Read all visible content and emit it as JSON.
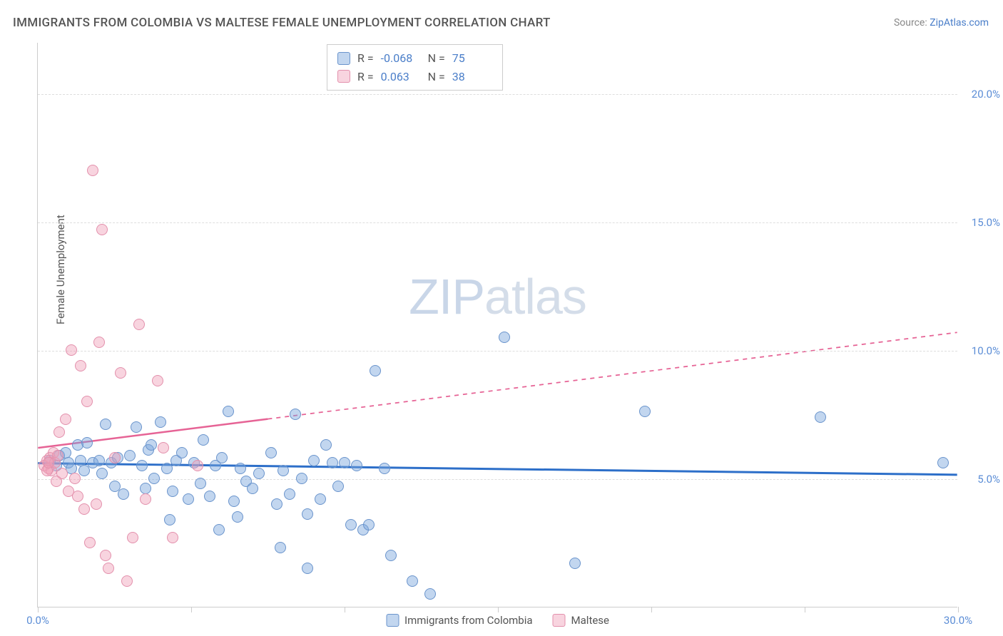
{
  "title": "IMMIGRANTS FROM COLOMBIA VS MALTESE FEMALE UNEMPLOYMENT CORRELATION CHART",
  "source_label": "Source:",
  "source_name": "ZipAtlas.com",
  "y_axis_label": "Female Unemployment",
  "watermark_a": "ZIP",
  "watermark_b": "atlas",
  "chart": {
    "type": "scatter",
    "xlim": [
      0,
      30
    ],
    "ylim": [
      0,
      22
    ],
    "x_ticks": [
      0,
      5,
      10,
      15,
      20,
      25,
      30
    ],
    "x_tick_labels": {
      "0": "0.0%",
      "30": "30.0%"
    },
    "y_gridlines": [
      5,
      10,
      15,
      20
    ],
    "y_tick_labels": {
      "5": "5.0%",
      "10": "10.0%",
      "15": "15.0%",
      "20": "20.0%"
    },
    "background_color": "#ffffff",
    "grid_color": "#dddddd",
    "axis_color": "#cccccc",
    "tick_label_color": "#5b8dd6",
    "point_radius": 8,
    "series": [
      {
        "name": "Immigrants from Colombia",
        "fill": "rgba(120,165,220,0.45)",
        "stroke": "#6a94cc",
        "trend_color": "#2d6fc9",
        "trend_width": 3,
        "trend_dash_after_x": 30,
        "r": "-0.068",
        "n": "75",
        "trend": {
          "y_at_x0": 5.6,
          "y_at_x30": 5.15
        },
        "points": [
          [
            0.4,
            5.7
          ],
          [
            0.6,
            5.5
          ],
          [
            0.7,
            5.9
          ],
          [
            0.9,
            6.0
          ],
          [
            1.0,
            5.6
          ],
          [
            1.1,
            5.4
          ],
          [
            1.3,
            6.3
          ],
          [
            1.4,
            5.7
          ],
          [
            1.5,
            5.3
          ],
          [
            1.6,
            6.4
          ],
          [
            1.8,
            5.6
          ],
          [
            2.0,
            5.7
          ],
          [
            2.1,
            5.2
          ],
          [
            2.2,
            7.1
          ],
          [
            2.4,
            5.6
          ],
          [
            2.5,
            4.7
          ],
          [
            2.6,
            5.8
          ],
          [
            2.8,
            4.4
          ],
          [
            3.0,
            5.9
          ],
          [
            3.2,
            7.0
          ],
          [
            3.4,
            5.5
          ],
          [
            3.5,
            4.6
          ],
          [
            3.6,
            6.1
          ],
          [
            3.8,
            5.0
          ],
          [
            4.0,
            7.2
          ],
          [
            4.2,
            5.4
          ],
          [
            4.4,
            4.5
          ],
          [
            4.5,
            5.7
          ],
          [
            4.7,
            6.0
          ],
          [
            4.9,
            4.2
          ],
          [
            5.1,
            5.6
          ],
          [
            5.3,
            4.8
          ],
          [
            5.4,
            6.5
          ],
          [
            5.6,
            4.3
          ],
          [
            5.8,
            5.5
          ],
          [
            6.0,
            5.8
          ],
          [
            6.2,
            7.6
          ],
          [
            6.4,
            4.1
          ],
          [
            6.6,
            5.4
          ],
          [
            6.8,
            4.9
          ],
          [
            7.0,
            4.6
          ],
          [
            7.2,
            5.2
          ],
          [
            7.6,
            6.0
          ],
          [
            7.8,
            4.0
          ],
          [
            8.0,
            5.3
          ],
          [
            8.2,
            4.4
          ],
          [
            8.4,
            7.5
          ],
          [
            8.6,
            5.0
          ],
          [
            8.8,
            3.6
          ],
          [
            9.0,
            5.7
          ],
          [
            9.2,
            4.2
          ],
          [
            9.4,
            6.3
          ],
          [
            9.6,
            5.6
          ],
          [
            9.8,
            4.7
          ],
          [
            10.0,
            5.6
          ],
          [
            10.2,
            3.2
          ],
          [
            10.4,
            5.5
          ],
          [
            10.6,
            3.0
          ],
          [
            10.8,
            3.2
          ],
          [
            11.0,
            9.2
          ],
          [
            11.3,
            5.4
          ],
          [
            11.5,
            2.0
          ],
          [
            12.2,
            1.0
          ],
          [
            12.8,
            0.5
          ],
          [
            15.2,
            10.5
          ],
          [
            17.5,
            1.7
          ],
          [
            19.8,
            7.6
          ],
          [
            25.5,
            7.4
          ],
          [
            29.5,
            5.6
          ],
          [
            7.9,
            2.3
          ],
          [
            8.8,
            1.5
          ],
          [
            6.5,
            3.5
          ],
          [
            5.9,
            3.0
          ],
          [
            4.3,
            3.4
          ],
          [
            3.7,
            6.3
          ]
        ]
      },
      {
        "name": "Maltese",
        "fill": "rgba(240,160,185,0.45)",
        "stroke": "#e390ac",
        "trend_color": "#e66395",
        "trend_width": 2.5,
        "trend_dash_after_x": 7.5,
        "r": "0.063",
        "n": "38",
        "trend": {
          "y_at_x0": 6.2,
          "y_at_x30": 10.7
        },
        "points": [
          [
            0.2,
            5.5
          ],
          [
            0.3,
            5.7
          ],
          [
            0.35,
            5.4
          ],
          [
            0.4,
            5.8
          ],
          [
            0.45,
            5.3
          ],
          [
            0.5,
            6.0
          ],
          [
            0.55,
            5.6
          ],
          [
            0.6,
            4.9
          ],
          [
            0.65,
            5.9
          ],
          [
            0.7,
            6.8
          ],
          [
            0.8,
            5.2
          ],
          [
            0.9,
            7.3
          ],
          [
            1.0,
            4.5
          ],
          [
            1.1,
            10.0
          ],
          [
            1.2,
            5.0
          ],
          [
            1.3,
            4.3
          ],
          [
            1.4,
            9.4
          ],
          [
            1.5,
            3.8
          ],
          [
            1.6,
            8.0
          ],
          [
            1.7,
            2.5
          ],
          [
            1.8,
            17.0
          ],
          [
            1.9,
            4.0
          ],
          [
            2.0,
            10.3
          ],
          [
            2.1,
            14.7
          ],
          [
            2.2,
            2.0
          ],
          [
            2.3,
            1.5
          ],
          [
            2.5,
            5.8
          ],
          [
            2.7,
            9.1
          ],
          [
            2.9,
            1.0
          ],
          [
            3.1,
            2.7
          ],
          [
            3.3,
            11.0
          ],
          [
            3.5,
            4.2
          ],
          [
            3.9,
            8.8
          ],
          [
            4.1,
            6.2
          ],
          [
            4.4,
            2.7
          ],
          [
            5.2,
            5.5
          ],
          [
            0.3,
            5.3
          ],
          [
            0.35,
            5.6
          ]
        ]
      }
    ]
  },
  "stats_box": {
    "rows": [
      {
        "swatch_fill": "rgba(120,165,220,0.45)",
        "swatch_stroke": "#6a94cc",
        "r_label": "R =",
        "r_val": "-0.068",
        "n_label": "N =",
        "n_val": "75"
      },
      {
        "swatch_fill": "rgba(240,160,185,0.45)",
        "swatch_stroke": "#e390ac",
        "r_label": "R =",
        "r_val": " 0.063",
        "n_label": "N =",
        "n_val": "38"
      }
    ]
  },
  "bottom_legend": [
    {
      "swatch_fill": "rgba(120,165,220,0.45)",
      "swatch_stroke": "#6a94cc",
      "label": "Immigrants from Colombia"
    },
    {
      "swatch_fill": "rgba(240,160,185,0.45)",
      "swatch_stroke": "#e390ac",
      "label": "Maltese"
    }
  ]
}
